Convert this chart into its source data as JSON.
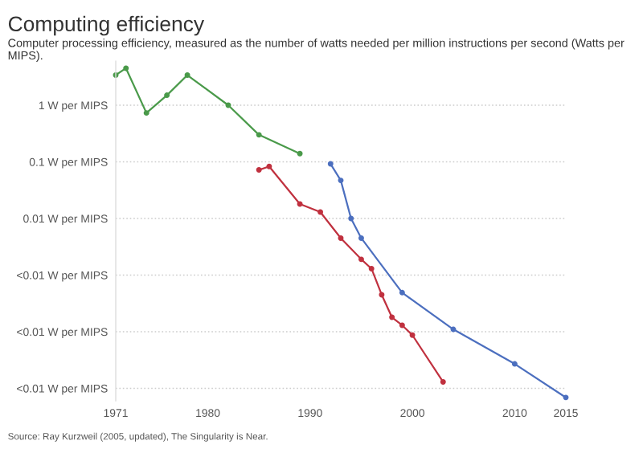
{
  "chart_data": {
    "type": "line",
    "title": "Computing efficiency",
    "subtitle": "Computer processing efficiency, measured as the number of watts needed per million instructions per second (Watts per MIPS).",
    "annotations": [
      "Source: Ray Kurzweil (2005, updated), The Singularity is Near."
    ],
    "log": "y",
    "grid": "y",
    "marker": "circle",
    "line_style": "solid",
    "xlim": [
      1971,
      2015
    ],
    "xticks": [
      1971,
      1980,
      1990,
      2000,
      2010,
      2015
    ],
    "ylim": [
      6e-06,
      6
    ],
    "yticks": [
      {
        "value": 1,
        "label": "1 W per MIPS"
      },
      {
        "value": 0.1,
        "label": "0.1 W per MIPS"
      },
      {
        "value": 0.01,
        "label": "0.01 W per MIPS"
      },
      {
        "value": 0.001,
        "label": "<0.01 W per MIPS"
      },
      {
        "value": 0.0001,
        "label": "<0.01 W per MIPS"
      },
      {
        "value": 1e-05,
        "label": "<0.01 W per MIPS"
      }
    ],
    "series": [
      {
        "color": "#4a9a4a",
        "x": [
          1971,
          1972,
          1974,
          1976,
          1978,
          1982,
          1985,
          1989
        ],
        "values": [
          3.4,
          4.5,
          0.73,
          1.5,
          3.4,
          1.0,
          0.3,
          0.14
        ]
      },
      {
        "color": "#c0313f",
        "x": [
          1985,
          1986,
          1989,
          1991,
          1993,
          1995,
          1996,
          1997,
          1998,
          1999,
          2000,
          2003
        ],
        "values": [
          0.072,
          0.083,
          0.018,
          0.013,
          0.0045,
          0.0019,
          0.0013,
          0.00045,
          0.00018,
          0.00013,
          8.7e-05,
          1.3e-05
        ]
      },
      {
        "color": "#4c6fbf",
        "x": [
          1992,
          1993,
          1994,
          1995,
          1999,
          2004,
          2010,
          2015
        ],
        "values": [
          0.092,
          0.047,
          0.01,
          0.0045,
          0.00049,
          0.00011,
          2.7e-05,
          6.9e-06
        ]
      }
    ]
  }
}
